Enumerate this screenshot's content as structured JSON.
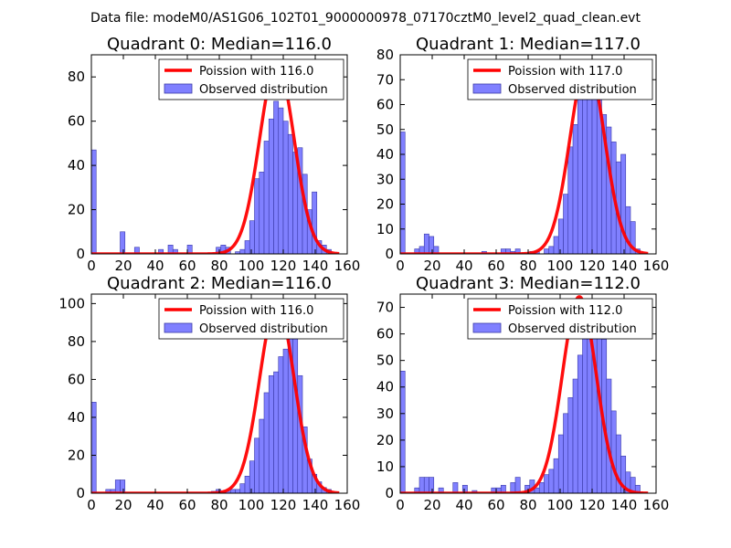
{
  "figure_title": "Data file: modeM0/AS1G06_102T01_9000000978_07170cztM0_level2_quad_clean.evt",
  "colors": {
    "bar_fill": "#8080ff",
    "bar_edge": "#3a3aa8",
    "curve": "#ff0000",
    "frame": "#000000"
  },
  "legend": {
    "curve_prefix": "Poission with ",
    "bar_label": "Observed distribution"
  },
  "chart_data": [
    {
      "type": "bar",
      "title": "Quadrant 0: Median=116.0",
      "median": "116.0",
      "xlim": [
        0,
        160
      ],
      "ylim": [
        0,
        90
      ],
      "xticks": [
        0,
        20,
        40,
        60,
        80,
        100,
        120,
        140,
        160
      ],
      "yticks": [
        0,
        20,
        40,
        60,
        80
      ],
      "bin_width": 3,
      "bins": [
        [
          0,
          47
        ],
        [
          3,
          0
        ],
        [
          6,
          0
        ],
        [
          9,
          0
        ],
        [
          12,
          0
        ],
        [
          18,
          10
        ],
        [
          21,
          0
        ],
        [
          24,
          0
        ],
        [
          27,
          3
        ],
        [
          30,
          0
        ],
        [
          33,
          0
        ],
        [
          36,
          0
        ],
        [
          39,
          0
        ],
        [
          42,
          2
        ],
        [
          45,
          0
        ],
        [
          48,
          4
        ],
        [
          51,
          2
        ],
        [
          54,
          0
        ],
        [
          60,
          4
        ],
        [
          63,
          0
        ],
        [
          66,
          0
        ],
        [
          69,
          0
        ],
        [
          72,
          0
        ],
        [
          75,
          0
        ],
        [
          78,
          3
        ],
        [
          81,
          4
        ],
        [
          84,
          3
        ],
        [
          87,
          0
        ],
        [
          90,
          1
        ],
        [
          93,
          2
        ],
        [
          96,
          6
        ],
        [
          99,
          15
        ],
        [
          102,
          34
        ],
        [
          105,
          37
        ],
        [
          108,
          51
        ],
        [
          111,
          61
        ],
        [
          114,
          69
        ],
        [
          117,
          66
        ],
        [
          120,
          60
        ],
        [
          123,
          54
        ],
        [
          126,
          46
        ],
        [
          129,
          48
        ],
        [
          132,
          36
        ],
        [
          135,
          20
        ],
        [
          138,
          28
        ],
        [
          141,
          6
        ],
        [
          144,
          4
        ],
        [
          147,
          2
        ],
        [
          150,
          0
        ]
      ],
      "curve": {
        "label": "Poission with 116.0",
        "mu": 116.0,
        "peak": 86
      }
    },
    {
      "type": "bar",
      "title": "Quadrant 1: Median=117.0",
      "median": "117.0",
      "xlim": [
        0,
        160
      ],
      "ylim": [
        0,
        80
      ],
      "xticks": [
        0,
        20,
        40,
        60,
        80,
        100,
        120,
        140,
        160
      ],
      "yticks": [
        0,
        10,
        20,
        30,
        40,
        50,
        60,
        70,
        80
      ],
      "bin_width": 3,
      "bins": [
        [
          0,
          49
        ],
        [
          3,
          0
        ],
        [
          6,
          0
        ],
        [
          9,
          2
        ],
        [
          12,
          3
        ],
        [
          15,
          8
        ],
        [
          18,
          7
        ],
        [
          21,
          3
        ],
        [
          24,
          0
        ],
        [
          27,
          0
        ],
        [
          30,
          0
        ],
        [
          51,
          1
        ],
        [
          54,
          0
        ],
        [
          63,
          2
        ],
        [
          66,
          2
        ],
        [
          69,
          1
        ],
        [
          72,
          2
        ],
        [
          75,
          0
        ],
        [
          78,
          0
        ],
        [
          81,
          1
        ],
        [
          84,
          1
        ],
        [
          87,
          0
        ],
        [
          90,
          2
        ],
        [
          93,
          3
        ],
        [
          96,
          7
        ],
        [
          99,
          14
        ],
        [
          102,
          24
        ],
        [
          105,
          43
        ],
        [
          108,
          52
        ],
        [
          111,
          67
        ],
        [
          114,
          69
        ],
        [
          117,
          77
        ],
        [
          120,
          67
        ],
        [
          123,
          64
        ],
        [
          126,
          56
        ],
        [
          129,
          51
        ],
        [
          132,
          45
        ],
        [
          135,
          37
        ],
        [
          138,
          40
        ],
        [
          141,
          19
        ],
        [
          144,
          13
        ],
        [
          147,
          2
        ],
        [
          150,
          0
        ]
      ],
      "curve": {
        "label": "Poission with 117.0",
        "mu": 117.0,
        "peak": 77
      }
    },
    {
      "type": "bar",
      "title": "Quadrant 2: Median=116.0",
      "median": "116.0",
      "xlim": [
        0,
        160
      ],
      "ylim": [
        0,
        105
      ],
      "xticks": [
        0,
        20,
        40,
        60,
        80,
        100,
        120,
        140,
        160
      ],
      "yticks": [
        0,
        20,
        40,
        60,
        80,
        100
      ],
      "bin_width": 3,
      "bins": [
        [
          0,
          48
        ],
        [
          3,
          0
        ],
        [
          6,
          0
        ],
        [
          9,
          2
        ],
        [
          12,
          2
        ],
        [
          15,
          7
        ],
        [
          18,
          7
        ],
        [
          21,
          0
        ],
        [
          75,
          1
        ],
        [
          78,
          2
        ],
        [
          81,
          1
        ],
        [
          84,
          1
        ],
        [
          87,
          2
        ],
        [
          90,
          2
        ],
        [
          93,
          5
        ],
        [
          96,
          9
        ],
        [
          99,
          17
        ],
        [
          102,
          29
        ],
        [
          105,
          39
        ],
        [
          108,
          53
        ],
        [
          111,
          62
        ],
        [
          114,
          64
        ],
        [
          117,
          72
        ],
        [
          120,
          76
        ],
        [
          123,
          86
        ],
        [
          126,
          100
        ],
        [
          129,
          62
        ],
        [
          132,
          35
        ],
        [
          135,
          18
        ],
        [
          138,
          10
        ],
        [
          141,
          6
        ],
        [
          144,
          3
        ],
        [
          147,
          2
        ],
        [
          150,
          0
        ]
      ],
      "curve": {
        "label": "Poission with 116.0",
        "mu": 116.0,
        "peak": 100
      }
    },
    {
      "type": "bar",
      "title": "Quadrant 3: Median=112.0",
      "median": "112.0",
      "xlim": [
        0,
        160
      ],
      "ylim": [
        0,
        75
      ],
      "xticks": [
        0,
        20,
        40,
        60,
        80,
        100,
        120,
        140,
        160
      ],
      "yticks": [
        0,
        10,
        20,
        30,
        40,
        50,
        60,
        70
      ],
      "bin_width": 3,
      "bins": [
        [
          0,
          46
        ],
        [
          3,
          0
        ],
        [
          6,
          0
        ],
        [
          9,
          2
        ],
        [
          12,
          6
        ],
        [
          15,
          6
        ],
        [
          18,
          6
        ],
        [
          21,
          0
        ],
        [
          24,
          2
        ],
        [
          27,
          0
        ],
        [
          30,
          0
        ],
        [
          33,
          4
        ],
        [
          36,
          0
        ],
        [
          39,
          3
        ],
        [
          45,
          1
        ],
        [
          48,
          0
        ],
        [
          57,
          2
        ],
        [
          60,
          2
        ],
        [
          63,
          3
        ],
        [
          66,
          0
        ],
        [
          69,
          4
        ],
        [
          72,
          6
        ],
        [
          75,
          0
        ],
        [
          78,
          3
        ],
        [
          81,
          5
        ],
        [
          84,
          2
        ],
        [
          87,
          4
        ],
        [
          90,
          7
        ],
        [
          93,
          9
        ],
        [
          96,
          13
        ],
        [
          99,
          22
        ],
        [
          102,
          30
        ],
        [
          105,
          36
        ],
        [
          108,
          43
        ],
        [
          111,
          52
        ],
        [
          114,
          61
        ],
        [
          117,
          67
        ],
        [
          120,
          64
        ],
        [
          123,
          70
        ],
        [
          126,
          58
        ],
        [
          129,
          43
        ],
        [
          132,
          31
        ],
        [
          135,
          22
        ],
        [
          138,
          14
        ],
        [
          141,
          8
        ],
        [
          144,
          6
        ],
        [
          147,
          3
        ],
        [
          150,
          0
        ]
      ],
      "curve": {
        "label": "Poission with 112.0",
        "mu": 112.0,
        "peak": 74
      }
    }
  ]
}
